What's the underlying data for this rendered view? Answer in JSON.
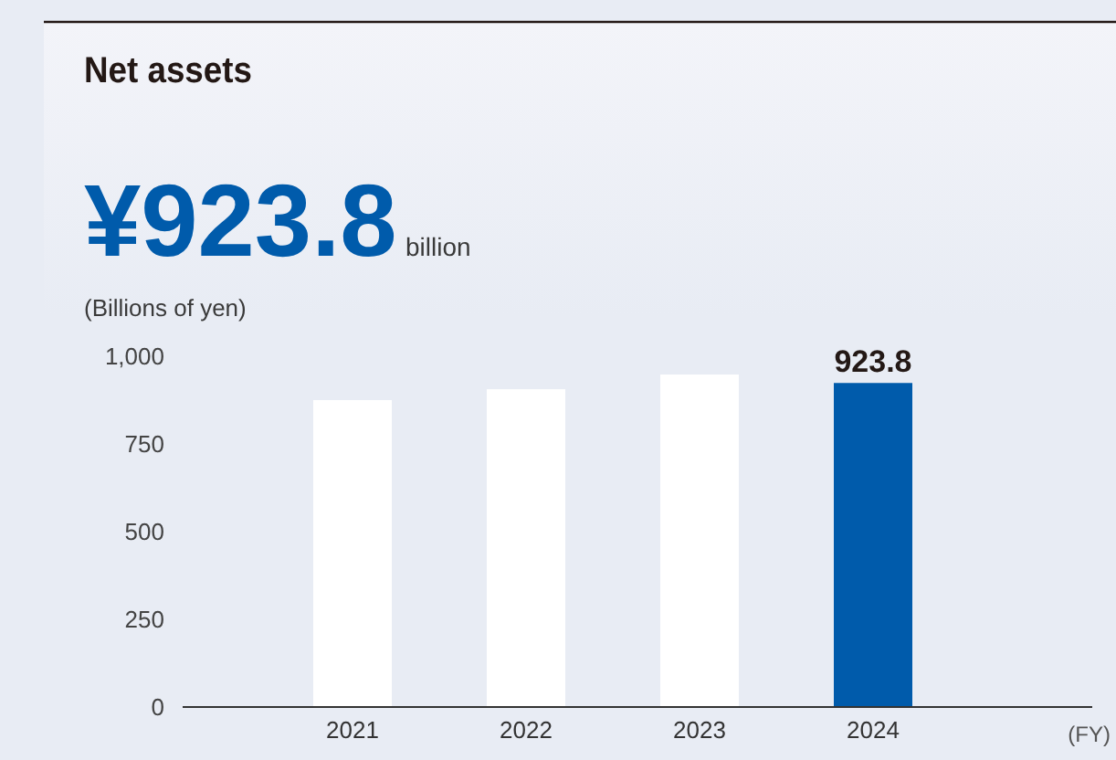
{
  "chart_data": {
    "type": "bar",
    "title": "Net assets",
    "ylabel": "(Billions of yen)",
    "xlabel": "(FY)",
    "annotations": [
      "¥923.8",
      "billion"
    ],
    "categories": [
      "2021",
      "2022",
      "2023",
      "2024"
    ],
    "values": [
      875,
      906,
      948,
      923.8
    ],
    "colors": [
      "#ffffff",
      "#ffffff",
      "#ffffff",
      "#005bab"
    ],
    "value_labels": [
      null,
      null,
      null,
      "923.8"
    ],
    "ylim": [
      0,
      1000
    ],
    "yticks": [
      0,
      250,
      500,
      750,
      {
        "value": 1000,
        "label": "1,000"
      }
    ],
    "grid": false
  }
}
